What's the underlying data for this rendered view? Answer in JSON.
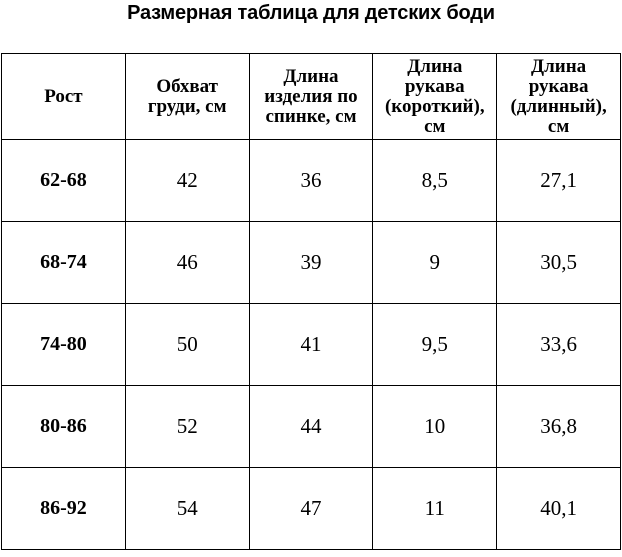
{
  "page": {
    "title": "Размерная таблица для детских боди",
    "background": "#ffffff",
    "text_color": "#000000",
    "border_color": "#000000"
  },
  "chart_data": {
    "type": "table",
    "title": "Размерная таблица для детских боди",
    "columns": [
      "Рост",
      "Обхват груди, см",
      "Длина изделия по спинке, см",
      "Длина рукава (короткий), см",
      "Длина рукава (длинный), см"
    ],
    "column_labels_wrapped": [
      "Рост",
      "Обхват\nгруди, см",
      "Длина\nизделия по\nспинке, см",
      "Длина\nрукава\n(короткий),\nсм",
      "Длина\nрукава\n(длинный),\nсм"
    ],
    "rows": [
      [
        "62-68",
        "42",
        "36",
        "8,5",
        "27,1"
      ],
      [
        "68-74",
        "46",
        "39",
        "9",
        "30,5"
      ],
      [
        "74-80",
        "50",
        "41",
        "9,5",
        "33,6"
      ],
      [
        "80-86",
        "52",
        "44",
        "10",
        "36,8"
      ],
      [
        "86-92",
        "54",
        "47",
        "11",
        "40,1"
      ]
    ]
  }
}
